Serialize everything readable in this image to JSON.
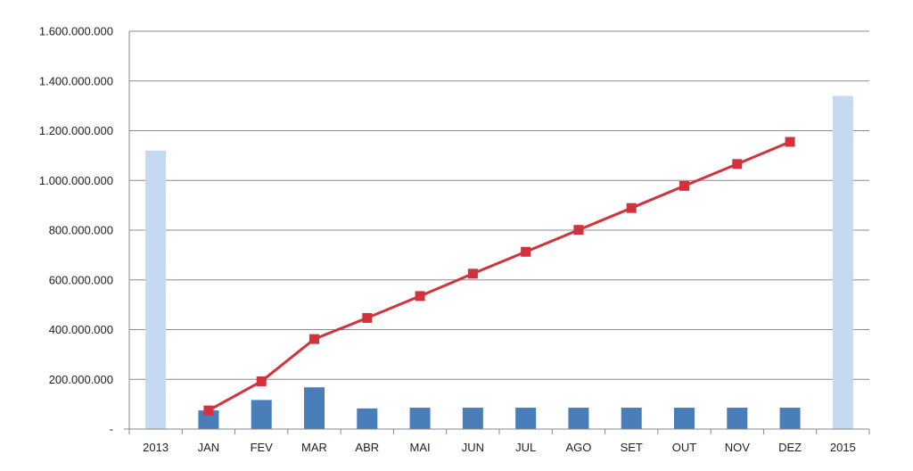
{
  "chart_data": {
    "type": "bar",
    "categories": [
      "2013",
      "JAN",
      "FEV",
      "MAR",
      "ABR",
      "MAI",
      "JUN",
      "JUL",
      "AGO",
      "SET",
      "OUT",
      "NOV",
      "DEZ",
      "2015"
    ],
    "y_tick_labels": [
      "-",
      "200.000.000",
      "400.000.000",
      "600.000.000",
      "800.000.000",
      "1.000.000.000",
      "1.200.000.000",
      "1.400.000.000",
      "1.600.000.000"
    ],
    "ylim": [
      0,
      1600000000
    ],
    "grid": true,
    "series": [
      {
        "kind": "bar",
        "color": "#c5d9f1",
        "values": [
          1120000000,
          null,
          null,
          null,
          null,
          null,
          null,
          null,
          null,
          null,
          null,
          null,
          null,
          1340000000
        ]
      },
      {
        "kind": "bar",
        "color": "#4a7ebb",
        "values": [
          null,
          75000000,
          117000000,
          168000000,
          83000000,
          86000000,
          86000000,
          86000000,
          86000000,
          86000000,
          86000000,
          86000000,
          86000000,
          null
        ]
      },
      {
        "kind": "line",
        "color": "#d2323c",
        "marker": "square",
        "values": [
          null,
          75000000,
          192000000,
          362000000,
          447000000,
          535000000,
          625000000,
          713000000,
          801000000,
          889000000,
          978000000,
          1066000000,
          1155000000,
          null
        ]
      }
    ]
  }
}
